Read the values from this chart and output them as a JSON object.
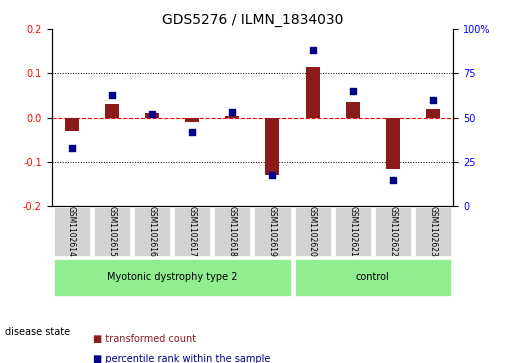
{
  "title": "GDS5276 / ILMN_1834030",
  "samples": [
    "GSM1102614",
    "GSM1102615",
    "GSM1102616",
    "GSM1102617",
    "GSM1102618",
    "GSM1102619",
    "GSM1102620",
    "GSM1102621",
    "GSM1102622",
    "GSM1102623"
  ],
  "red_values": [
    -0.03,
    0.03,
    0.01,
    -0.01,
    0.005,
    -0.13,
    0.115,
    0.035,
    -0.115,
    0.02
  ],
  "blue_values_pct": [
    33,
    63,
    52,
    42,
    53,
    18,
    88,
    65,
    15,
    60
  ],
  "group1_label": "Myotonic dystrophy type 2",
  "group2_label": "control",
  "group1_indices": [
    0,
    1,
    2,
    3,
    4,
    5
  ],
  "group2_indices": [
    6,
    7,
    8,
    9
  ],
  "disease_state_label": "disease state",
  "legend_red": "transformed count",
  "legend_blue": "percentile rank within the sample",
  "ylim_left": [
    -0.2,
    0.2
  ],
  "ylim_right": [
    0,
    100
  ],
  "yticks_left": [
    -0.2,
    -0.1,
    0.0,
    0.1,
    0.2
  ],
  "yticks_right": [
    0,
    25,
    50,
    75,
    100
  ],
  "bar_color": "#8B1A1A",
  "dot_color": "#00008B",
  "group1_color": "#90EE90",
  "group2_color": "#90EE90",
  "grid_color": "#000000",
  "bg_color": "#ffffff",
  "plot_bg": "#ffffff",
  "tick_label_box_color": "#D3D3D3"
}
